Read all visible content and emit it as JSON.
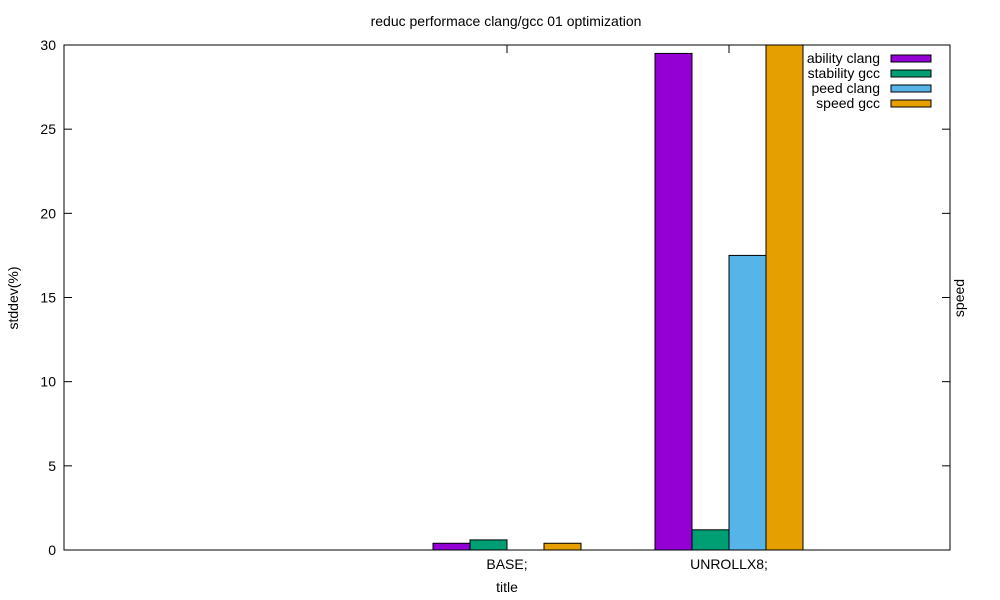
{
  "chart_data": {
    "type": "bar",
    "title": "reduc performace clang/gcc 01 optimization",
    "xlabel": "title",
    "ylabel": "stddev(%)",
    "y2label": "speed",
    "ylim": [
      0,
      30
    ],
    "yticks": [
      0,
      5,
      10,
      15,
      20,
      25,
      30
    ],
    "categories": [
      "BASE;",
      "UNROLLX8;"
    ],
    "series": [
      {
        "name": "stability clang",
        "legend_text": "ability clang",
        "color": "#9400d3",
        "values": [
          0.4,
          29.5
        ]
      },
      {
        "name": "stability gcc",
        "legend_text": "stability gcc",
        "color": "#009e73",
        "values": [
          0.6,
          1.2
        ]
      },
      {
        "name": "speed clang",
        "legend_text": "peed clang",
        "color": "#56b4e9",
        "values": [
          0,
          17.5
        ]
      },
      {
        "name": "speed gcc",
        "legend_text": "speed gcc",
        "color": "#e69f00",
        "values": [
          0.4,
          30
        ]
      }
    ],
    "legend_position": "top-right",
    "grid": false
  }
}
